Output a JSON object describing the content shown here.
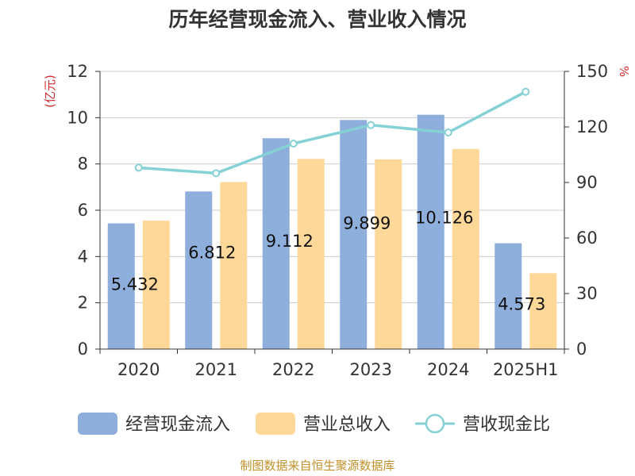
{
  "chart_data": {
    "type": "bar",
    "title": "历年经营现金流入、营业收入情况",
    "categories": [
      "2020",
      "2021",
      "2022",
      "2023",
      "2024",
      "2025H1"
    ],
    "series": [
      {
        "name": "经营现金流入",
        "kind": "bar",
        "axis": "left",
        "color": "#8eaedb",
        "values": [
          5.432,
          6.812,
          9.112,
          9.899,
          10.126,
          4.573
        ],
        "labels": [
          "5.432",
          "6.812",
          "9.112",
          "9.899",
          "10.126",
          "4.573"
        ]
      },
      {
        "name": "营业总收入",
        "kind": "bar",
        "axis": "left",
        "color": "#fed898",
        "values": [
          5.55,
          7.22,
          8.22,
          8.2,
          8.65,
          3.28
        ]
      },
      {
        "name": "营收现金比",
        "kind": "line",
        "axis": "right",
        "color": "#85d1d6",
        "values": [
          98,
          95,
          111,
          121,
          117,
          139
        ]
      }
    ],
    "y_left": {
      "unit": "(亿元)",
      "lim": [
        0,
        12
      ],
      "ticks": [
        0,
        2,
        4,
        6,
        8,
        10,
        12
      ]
    },
    "y_right": {
      "unit": "%",
      "lim": [
        0,
        150
      ],
      "ticks": [
        0,
        30,
        60,
        90,
        120,
        150
      ]
    },
    "grid": true,
    "legend_position": "bottom",
    "source": "制图数据来自恒生聚源数据库"
  }
}
